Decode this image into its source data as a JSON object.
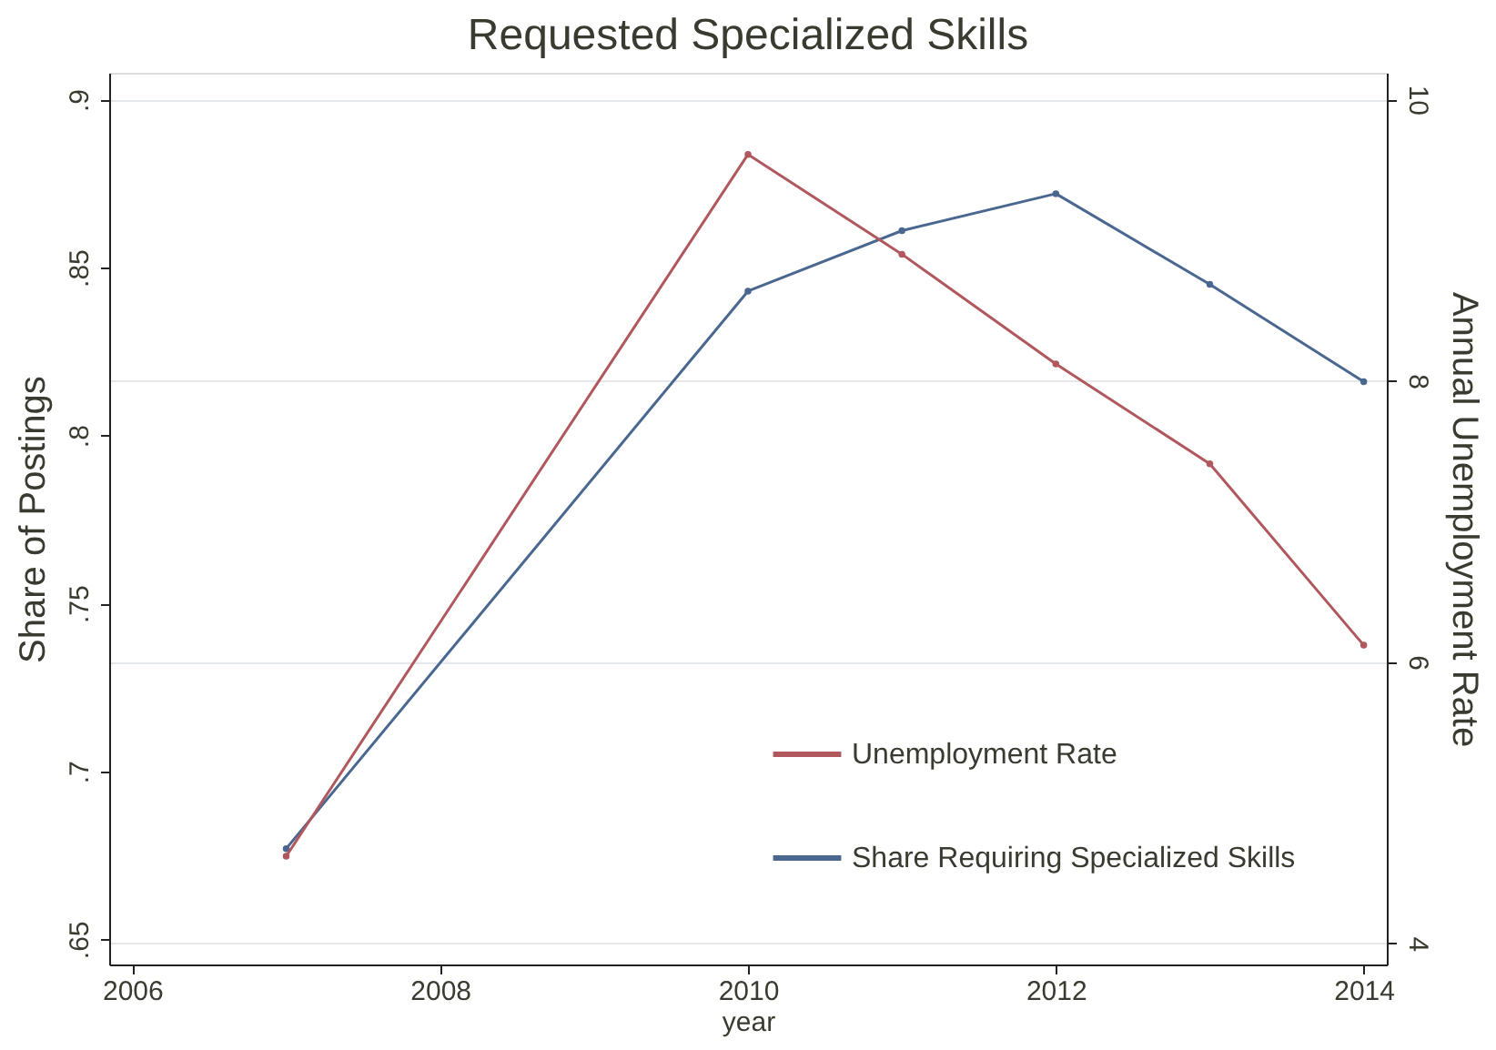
{
  "chart_data": {
    "type": "line",
    "title": "Requested Specialized Skills",
    "xlabel": "year",
    "ylabel": "Share of Postings",
    "y2label": "Annual Unemployment Rate",
    "x": [
      2007,
      2010,
      2011,
      2012,
      2013,
      2014
    ],
    "series": [
      {
        "name": "Unemployment Rate",
        "color": "#b0585e",
        "axis": "y2",
        "values": [
          4.62,
          9.61,
          8.9,
          8.12,
          7.41,
          6.12
        ]
      },
      {
        "name": "Share Requiring Specialized Skills",
        "color": "#4a6790",
        "values": [
          0.677,
          0.843,
          0.861,
          0.872,
          0.845,
          0.816
        ]
      }
    ],
    "xlim": [
      2005.85,
      2014.15
    ],
    "xticks": [
      2006,
      2008,
      2010,
      2012,
      2014
    ],
    "ylim": [
      0.6425,
      0.908
    ],
    "yticks": [
      {
        "value": 0.65,
        "label": ".65"
      },
      {
        "value": 0.7,
        "label": ".7"
      },
      {
        "value": 0.75,
        "label": ".75"
      },
      {
        "value": 0.8,
        "label": ".8"
      },
      {
        "value": 0.85,
        "label": ".85"
      },
      {
        "value": 0.9,
        "label": ".9"
      }
    ],
    "y2lim": [
      3.85,
      10.19
    ],
    "y2ticks": [
      4,
      6,
      8,
      10
    ],
    "grid": "y2",
    "legend": "bottom right",
    "marker": "circle",
    "line_style": "solid"
  }
}
